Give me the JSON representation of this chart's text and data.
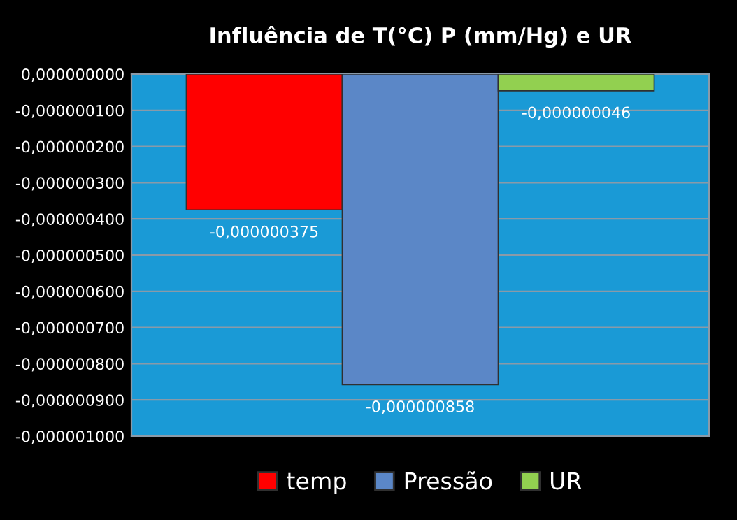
{
  "chart_data": {
    "type": "bar",
    "title": "Influência de T(°C) P (mm/Hg) e UR",
    "categories": [
      null
    ],
    "series": [
      {
        "name": "temp",
        "color": "#ff0000",
        "values": [
          -3.75e-07
        ],
        "value_labels": [
          "-0,000000375"
        ]
      },
      {
        "name": "Pressão",
        "color": "#5b87c7",
        "values": [
          -8.58e-07
        ],
        "value_labels": [
          "-0,000000858"
        ]
      },
      {
        "name": "UR",
        "color": "#92d050",
        "values": [
          -4.6e-08
        ],
        "value_labels": [
          "-0,000000046"
        ]
      }
    ],
    "ylim": [
      -1e-06,
      0
    ],
    "yticks": [
      {
        "value": 0,
        "label": "0,000000000"
      },
      {
        "value": -1e-07,
        "label": "-0,000000100"
      },
      {
        "value": -2e-07,
        "label": "-0,000000200"
      },
      {
        "value": -3e-07,
        "label": "-0,000000300"
      },
      {
        "value": -4e-07,
        "label": "-0,000000400"
      },
      {
        "value": -5e-07,
        "label": "-0,000000500"
      },
      {
        "value": -6e-07,
        "label": "-0,000000600"
      },
      {
        "value": -7e-07,
        "label": "-0,000000700"
      },
      {
        "value": -8e-07,
        "label": "-0,000000800"
      },
      {
        "value": -9e-07,
        "label": "-0,000000900"
      },
      {
        "value": -1e-06,
        "label": "-0,000001000"
      }
    ],
    "grid": "y",
    "legend": "bottom"
  }
}
